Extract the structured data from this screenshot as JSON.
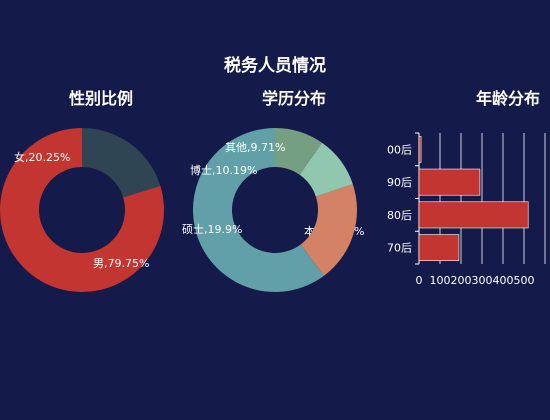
{
  "main_title": "税务人员情况",
  "colors": {
    "background": "#141a4a",
    "male": "#c23531",
    "female": "#2f4554",
    "bar": "#c23531"
  },
  "chart_data": [
    {
      "type": "pie",
      "title": "性别比例",
      "slices": [
        {
          "name": "男",
          "value": 79.75,
          "label": "男,79.75%",
          "color": "#c23531"
        },
        {
          "name": "女",
          "value": 20.25,
          "label": "女,20.25%",
          "color": "#2f4554"
        }
      ]
    },
    {
      "type": "pie",
      "title": "学历分布",
      "slices": [
        {
          "name": "本科",
          "value": 60.2,
          "label": "本科,60.2%",
          "color": "#61a0a8"
        },
        {
          "name": "硕士",
          "value": 19.9,
          "label": "硕士,19.9%",
          "color": "#d48265"
        },
        {
          "name": "博士",
          "value": 10.19,
          "label": "博士,10.19%",
          "color": "#91c7ae"
        },
        {
          "name": "其他",
          "value": 9.71,
          "label": "其他,9.71%",
          "color": "#749f83"
        }
      ]
    },
    {
      "type": "bar",
      "orientation": "horizontal",
      "title": "年龄分布",
      "categories": [
        "00后",
        "90后",
        "80后",
        "70后"
      ],
      "values": [
        10,
        290,
        520,
        190
      ],
      "xlim": [
        0,
        600
      ],
      "xticks": [
        "0",
        "100",
        "200",
        "300",
        "400",
        "500"
      ],
      "grid": true
    }
  ]
}
